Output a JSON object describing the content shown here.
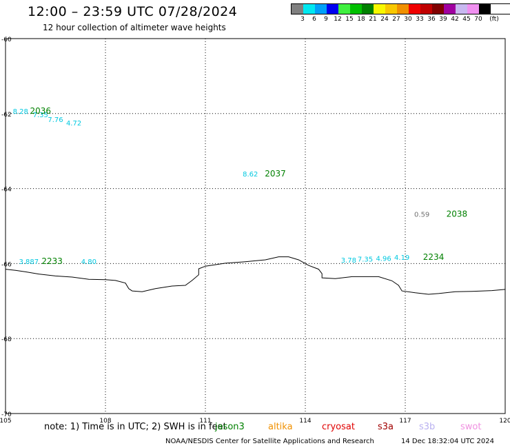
{
  "header": {
    "title": "12:00 – 23:59 UTC 07/28/2024",
    "subtitle": "12 hour collection of altimeter wave heights"
  },
  "legend": {
    "unit": "(ft)",
    "colors": [
      "#808080",
      "#00e8f0",
      "#00a0f8",
      "#0000f0",
      "#40f040",
      "#00c000",
      "#008000",
      "#f8f800",
      "#f8c800",
      "#f09000",
      "#f00000",
      "#c00000",
      "#800000",
      "#a000a0",
      "#c8b8f0",
      "#f090f0",
      "#000000"
    ],
    "labels": [
      "3",
      "6",
      "9",
      "12",
      "15",
      "18",
      "21",
      "24",
      "27",
      "30",
      "33",
      "36",
      "39",
      "42",
      "45",
      "70"
    ]
  },
  "map": {
    "lon_min": 105,
    "lon_max": 120,
    "lat_min": -70,
    "lat_max": -60,
    "x_ticks": [
      "105",
      "108",
      "111",
      "114",
      "117",
      "120"
    ],
    "y_ticks": [
      "-60",
      "-62",
      "-64",
      "-66",
      "-68",
      "-70"
    ]
  },
  "coastline": [
    [
      105.0,
      -66.15
    ],
    [
      105.3,
      -66.18
    ],
    [
      105.6,
      -66.22
    ],
    [
      106.0,
      -66.28
    ],
    [
      106.5,
      -66.33
    ],
    [
      107.0,
      -66.36
    ],
    [
      107.5,
      -66.42
    ],
    [
      108.0,
      -66.43
    ],
    [
      108.3,
      -66.45
    ],
    [
      108.6,
      -66.52
    ],
    [
      108.7,
      -66.67
    ],
    [
      108.8,
      -66.73
    ],
    [
      109.1,
      -66.75
    ],
    [
      109.5,
      -66.67
    ],
    [
      110.0,
      -66.6
    ],
    [
      110.4,
      -66.58
    ],
    [
      110.6,
      -66.45
    ],
    [
      110.8,
      -66.3
    ],
    [
      110.8,
      -66.14
    ],
    [
      111.0,
      -66.07
    ],
    [
      111.6,
      -65.99
    ],
    [
      112.2,
      -65.95
    ],
    [
      112.8,
      -65.9
    ],
    [
      113.2,
      -65.82
    ],
    [
      113.5,
      -65.82
    ],
    [
      113.8,
      -65.9
    ],
    [
      114.1,
      -66.05
    ],
    [
      114.4,
      -66.15
    ],
    [
      114.5,
      -66.27
    ],
    [
      114.5,
      -66.38
    ],
    [
      114.9,
      -66.4
    ],
    [
      115.4,
      -66.35
    ],
    [
      116.2,
      -66.35
    ],
    [
      116.6,
      -66.46
    ],
    [
      116.8,
      -66.58
    ],
    [
      116.9,
      -66.73
    ],
    [
      117.3,
      -66.78
    ],
    [
      117.7,
      -66.82
    ],
    [
      118.0,
      -66.8
    ],
    [
      118.5,
      -66.75
    ],
    [
      119.0,
      -66.74
    ],
    [
      119.6,
      -66.72
    ],
    [
      120.0,
      -66.69
    ]
  ],
  "points": [
    {
      "lon": 105.45,
      "lat": -62.0,
      "label": "8.28",
      "color": "#00c8e0"
    },
    {
      "lon": 106.05,
      "lat": -62.1,
      "label": "7.35",
      "color": "#00c8e0"
    },
    {
      "lon": 106.5,
      "lat": -62.22,
      "label": "7.76",
      "color": "#00c8e0"
    },
    {
      "lon": 107.05,
      "lat": -62.32,
      "label": "4.72",
      "color": "#00c8e0"
    },
    {
      "lon": 112.35,
      "lat": -63.68,
      "label": "8.62",
      "color": "#00c8e0"
    },
    {
      "lon": 117.5,
      "lat": -64.75,
      "label": "0.59",
      "color": "#707070"
    },
    {
      "lon": 105.7,
      "lat": -66.01,
      "label": "3.887",
      "color": "#00c8e0"
    },
    {
      "lon": 107.5,
      "lat": -66.01,
      "label": "4.80",
      "color": "#00c8e0"
    },
    {
      "lon": 115.3,
      "lat": -65.97,
      "label": "3.78",
      "color": "#00c8e0"
    },
    {
      "lon": 115.8,
      "lat": -65.95,
      "label": "7.35",
      "color": "#00c8e0"
    },
    {
      "lon": 116.35,
      "lat": -65.93,
      "label": "4.96",
      "color": "#00c8e0"
    },
    {
      "lon": 116.9,
      "lat": -65.9,
      "label": "4.19",
      "color": "#00c8e0"
    }
  ],
  "passes": [
    {
      "lon": 106.05,
      "lat": -62.0,
      "label": "2036",
      "color": "#008000"
    },
    {
      "lon": 113.1,
      "lat": -63.68,
      "label": "2037",
      "color": "#008000"
    },
    {
      "lon": 118.55,
      "lat": -64.75,
      "label": "2038",
      "color": "#008000"
    },
    {
      "lon": 106.4,
      "lat": -66.01,
      "label": "2233",
      "color": "#008000"
    },
    {
      "lon": 117.85,
      "lat": -65.9,
      "label": "2234",
      "color": "#008000"
    }
  ],
  "footer": {
    "note": "note:  1) Time is in UTC; 2) SWH is in feet",
    "satellites": [
      {
        "name": "jason3",
        "color": "#008000"
      },
      {
        "name": "altika",
        "color": "#f09000"
      },
      {
        "name": "cryosat",
        "color": "#e00000"
      },
      {
        "name": "s3a",
        "color": "#a00000"
      },
      {
        "name": "s3b",
        "color": "#b8b0f0"
      },
      {
        "name": "swot",
        "color": "#f090e0"
      }
    ],
    "credit": "NOAA/NESDIS Center for Satellite Applications and Research",
    "timestamp": "14 Dec 18:32:04 UTC 2024"
  }
}
